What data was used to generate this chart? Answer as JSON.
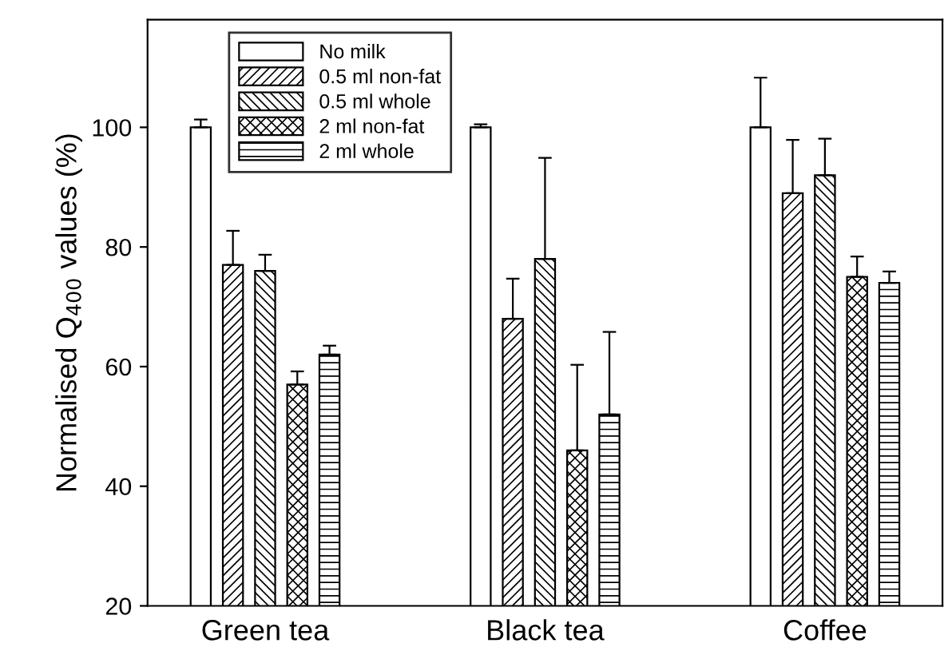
{
  "chart_data": {
    "type": "bar",
    "ylabel": "Normalised Q$_{400}$ values (%)",
    "categories": [
      "Green tea",
      "Black tea",
      "Coffee"
    ],
    "series": [
      {
        "name": "No milk",
        "color": "#ffffff",
        "values": [
          100,
          100,
          100
        ],
        "errors": [
          [
            100,
            101.3
          ],
          [
            100,
            100.5
          ],
          [
            100,
            108.3
          ]
        ]
      },
      {
        "name": "0.5 ml non-fat",
        "color": "#000000",
        "values": [
          77,
          68,
          89
        ],
        "errors": [
          [
            77,
            82.7
          ],
          [
            68,
            74.7
          ],
          [
            89,
            97.9
          ]
        ]
      },
      {
        "name": "0.5 ml whole",
        "color": "#000000",
        "values": [
          76,
          78,
          92
        ],
        "errors": [
          [
            76,
            78.7
          ],
          [
            78,
            94.9
          ],
          [
            92,
            98.1
          ]
        ]
      },
      {
        "name": "2 ml non-fat",
        "color": "#000000",
        "values": [
          57,
          46,
          75
        ],
        "errors": [
          [
            57,
            59.2
          ],
          [
            46,
            60.3
          ],
          [
            75,
            78.4
          ]
        ]
      },
      {
        "name": "2 ml whole",
        "color": "#000000",
        "values": [
          62,
          52,
          74
        ],
        "errors": [
          [
            62,
            63.5
          ],
          [
            52,
            65.8
          ],
          [
            74,
            75.9
          ]
        ]
      }
    ],
    "ylim": [
      20,
      118
    ],
    "yticks": [
      20,
      40,
      60,
      80,
      100
    ],
    "grid": false,
    "legend": "top left"
  }
}
